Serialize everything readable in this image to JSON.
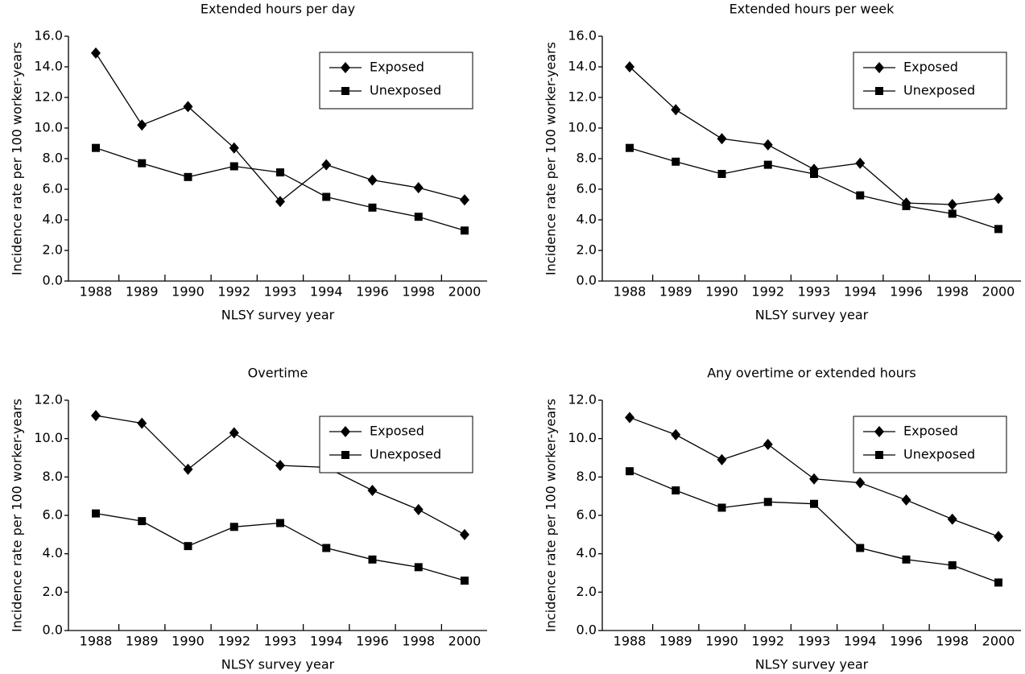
{
  "chart_data": [
    {
      "type": "line",
      "title": "Extended hours per day",
      "x_label": "NLSY survey year",
      "y_label": "Incidence rate per 100 worker-years",
      "categories": [
        "1988",
        "1989",
        "1990",
        "1992",
        "1993",
        "1994",
        "1996",
        "1998",
        "2000"
      ],
      "series": [
        {
          "name": "Exposed",
          "color": "#000000",
          "marker": "diamond",
          "values": [
            14.9,
            10.2,
            11.4,
            8.7,
            5.2,
            7.6,
            6.6,
            6.1,
            5.3
          ]
        },
        {
          "name": "Unexposed",
          "color": "#000000",
          "marker": "square",
          "values": [
            8.7,
            7.7,
            6.8,
            7.5,
            7.1,
            5.5,
            4.8,
            4.2,
            3.3
          ]
        }
      ],
      "ylim": [
        0,
        16
      ],
      "yticks": [
        {
          "value": 0,
          "label": "0.0"
        },
        {
          "value": 2,
          "label": "2.0"
        },
        {
          "value": 4,
          "label": "4.0"
        },
        {
          "value": 6,
          "label": "6.0"
        },
        {
          "value": 8,
          "label": "8.0"
        },
        {
          "value": 10,
          "label": "10.0"
        },
        {
          "value": 12,
          "label": "12.0"
        },
        {
          "value": 14,
          "label": "14.0"
        },
        {
          "value": 16,
          "label": "16.0"
        }
      ],
      "legend": "upper right",
      "grid": false
    },
    {
      "type": "line",
      "title": "Extended hours per week",
      "x_label": "NLSY survey year",
      "y_label": "Incidence rate per 100 worker-years",
      "categories": [
        "1988",
        "1989",
        "1990",
        "1992",
        "1993",
        "1994",
        "1996",
        "1998",
        "2000"
      ],
      "series": [
        {
          "name": "Exposed",
          "color": "#000000",
          "marker": "diamond",
          "values": [
            14.0,
            11.2,
            9.3,
            8.9,
            7.3,
            7.7,
            5.1,
            5.0,
            5.4
          ]
        },
        {
          "name": "Unexposed",
          "color": "#000000",
          "marker": "square",
          "values": [
            8.7,
            7.8,
            7.0,
            7.6,
            7.0,
            5.6,
            4.9,
            4.4,
            3.4
          ]
        }
      ],
      "ylim": [
        0,
        16
      ],
      "yticks": [
        {
          "value": 0,
          "label": "0.0"
        },
        {
          "value": 2,
          "label": "2.0"
        },
        {
          "value": 4,
          "label": "4.0"
        },
        {
          "value": 6,
          "label": "6.0"
        },
        {
          "value": 8,
          "label": "8.0"
        },
        {
          "value": 10,
          "label": "10.0"
        },
        {
          "value": 12,
          "label": "12.0"
        },
        {
          "value": 14,
          "label": "14.0"
        },
        {
          "value": 16,
          "label": "16.0"
        }
      ],
      "legend": "upper right",
      "grid": false
    },
    {
      "type": "line",
      "title": "Overtime",
      "x_label": "NLSY survey year",
      "y_label": "Incidence rate per 100 worker-years",
      "categories": [
        "1988",
        "1989",
        "1990",
        "1992",
        "1993",
        "1994",
        "1996",
        "1998",
        "2000"
      ],
      "series": [
        {
          "name": "Exposed",
          "color": "#000000",
          "marker": "diamond",
          "values": [
            11.2,
            10.8,
            8.4,
            10.3,
            8.6,
            8.5,
            7.3,
            6.3,
            5.0
          ]
        },
        {
          "name": "Unexposed",
          "color": "#000000",
          "marker": "square",
          "values": [
            6.1,
            5.7,
            4.4,
            5.4,
            5.6,
            4.3,
            3.7,
            3.3,
            2.6
          ]
        }
      ],
      "ylim": [
        0,
        12
      ],
      "yticks": [
        {
          "value": 0,
          "label": "0.0"
        },
        {
          "value": 2,
          "label": "2.0"
        },
        {
          "value": 4,
          "label": "4.0"
        },
        {
          "value": 6,
          "label": "6.0"
        },
        {
          "value": 8,
          "label": "8.0"
        },
        {
          "value": 10,
          "label": "10.0"
        },
        {
          "value": 12,
          "label": "12.0"
        }
      ],
      "legend": "upper right",
      "grid": false
    },
    {
      "type": "line",
      "title": "Any overtime or extended hours",
      "x_label": "NLSY survey year",
      "y_label": "Incidence rate per 100 worker-years",
      "categories": [
        "1988",
        "1989",
        "1990",
        "1992",
        "1993",
        "1994",
        "1996",
        "1998",
        "2000"
      ],
      "series": [
        {
          "name": "Exposed",
          "color": "#000000",
          "marker": "diamond",
          "values": [
            11.1,
            10.2,
            8.9,
            9.7,
            7.9,
            7.7,
            6.8,
            5.8,
            4.9
          ]
        },
        {
          "name": "Unexposed",
          "color": "#000000",
          "marker": "square",
          "values": [
            8.3,
            7.3,
            6.4,
            6.7,
            6.6,
            4.3,
            3.7,
            3.4,
            2.5
          ]
        }
      ],
      "ylim": [
        0,
        12
      ],
      "yticks": [
        {
          "value": 0,
          "label": "0.0"
        },
        {
          "value": 2,
          "label": "2.0"
        },
        {
          "value": 4,
          "label": "4.0"
        },
        {
          "value": 6,
          "label": "6.0"
        },
        {
          "value": 8,
          "label": "8.0"
        },
        {
          "value": 10,
          "label": "10.0"
        },
        {
          "value": 12,
          "label": "12.0"
        }
      ],
      "legend": "upper right",
      "grid": false
    }
  ]
}
